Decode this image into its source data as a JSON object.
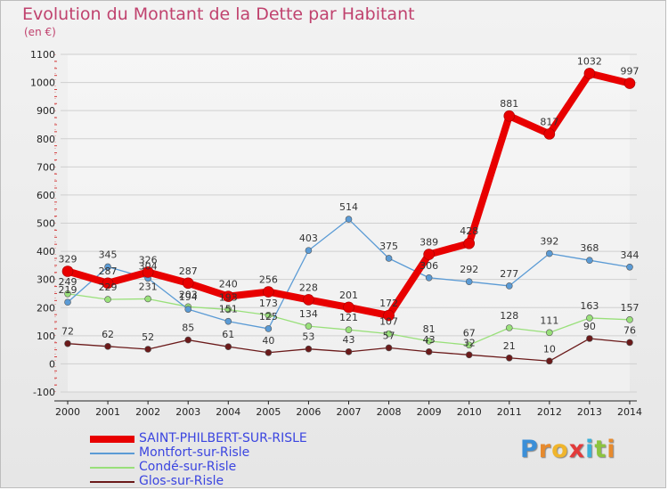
{
  "header": {
    "title": "Evolution du Montant de la Dette par Habitant",
    "unit": "(en €)"
  },
  "brand": {
    "letters": [
      "P",
      "r",
      "o",
      "x",
      "i",
      "t",
      "i"
    ],
    "colors": [
      "#3b8fd8",
      "#e78a2d",
      "#f0b52c",
      "#e23b3b",
      "#3bb0d8",
      "#8cc43f",
      "#e78a2d"
    ]
  },
  "chart_data": {
    "type": "line",
    "title": "Evolution du Montant de la Dette par Habitant",
    "ylabel": "(en €)",
    "xlabel": "",
    "x": [
      "2000",
      "2001",
      "2002",
      "2003",
      "2004",
      "2005",
      "2006",
      "2007",
      "2008",
      "2009",
      "2010",
      "2011",
      "2012",
      "2013",
      "2014"
    ],
    "ylim": [
      -100,
      1100
    ],
    "yticks": [
      -100,
      0,
      100,
      200,
      300,
      400,
      500,
      600,
      700,
      800,
      900,
      1000,
      1100
    ],
    "grid": "horizontal",
    "legend_position": "bottom-left",
    "series": [
      {
        "name": "SAINT-PHILBERT-SUR-RISLE",
        "color": "#e80000",
        "values": [
          329,
          287,
          326,
          287,
          240,
          256,
          228,
          201,
          172,
          389,
          428,
          881,
          817,
          1032,
          997
        ]
      },
      {
        "name": "Montfort-sur-Risle",
        "color": "#5b9bd5",
        "values": [
          219,
          345,
          304,
          194,
          151,
          125,
          403,
          514,
          375,
          306,
          292,
          277,
          392,
          368,
          344
        ]
      },
      {
        "name": "Condé-sur-Risle",
        "color": "#99e07a",
        "values": [
          249,
          229,
          231,
          203,
          193,
          173,
          134,
          121,
          107,
          81,
          67,
          128,
          111,
          163,
          157
        ]
      },
      {
        "name": "Glos-sur-Risle",
        "color": "#6b1a1a",
        "values": [
          72,
          62,
          52,
          85,
          61,
          40,
          53,
          43,
          57,
          43,
          32,
          21,
          10,
          90,
          76
        ]
      }
    ]
  }
}
